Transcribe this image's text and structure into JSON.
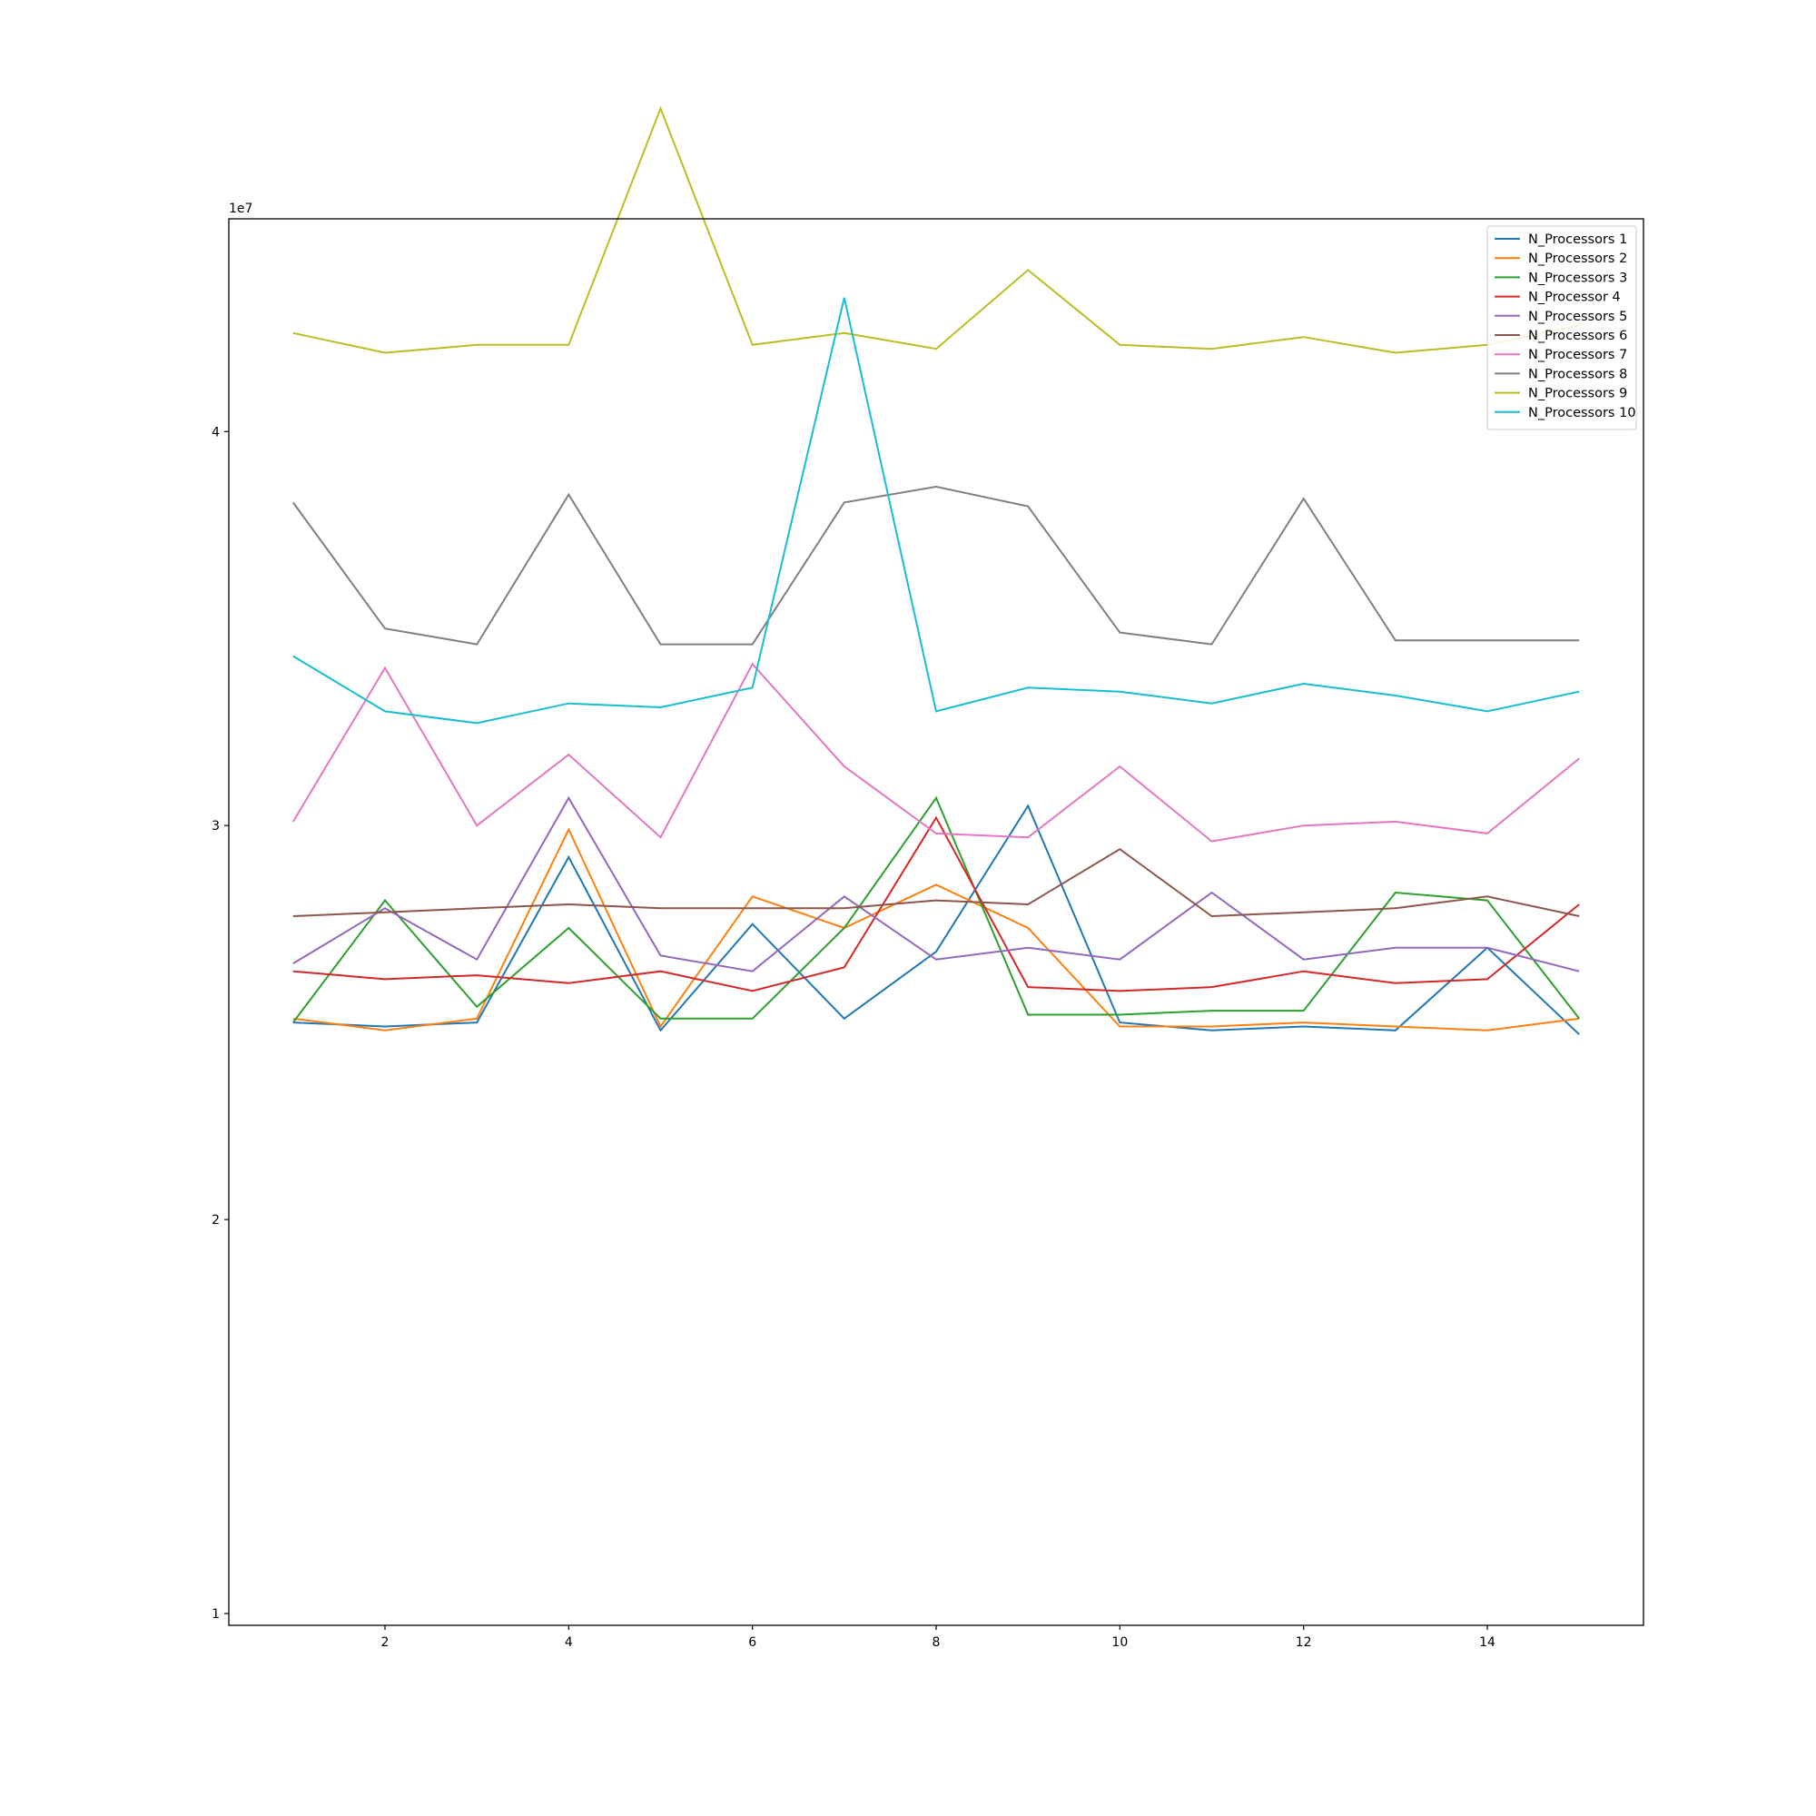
{
  "chart_data": {
    "type": "line",
    "title": "",
    "xlabel": "",
    "ylabel": "",
    "y_offset_label": "1e7",
    "xlim": [
      0.3,
      15.7
    ],
    "ylim": [
      0.97,
      4.54
    ],
    "x_ticks": [
      2,
      4,
      6,
      8,
      10,
      12,
      14
    ],
    "y_ticks": [
      1,
      2,
      3,
      4
    ],
    "grid": false,
    "legend_position": "top-right",
    "x": [
      1,
      2,
      3,
      4,
      5,
      6,
      7,
      8,
      9,
      10,
      11,
      12,
      13,
      14,
      15
    ],
    "series": [
      {
        "name": "N_Processors 1",
        "color": "#1f77b4",
        "values": [
          2.5,
          2.49,
          2.5,
          2.92,
          2.48,
          2.75,
          2.51,
          2.68,
          3.05,
          2.5,
          2.48,
          2.49,
          2.48,
          2.69,
          2.47
        ]
      },
      {
        "name": "N_Processors 2",
        "color": "#ff7f0e",
        "values": [
          2.51,
          2.48,
          2.51,
          2.99,
          2.49,
          2.82,
          2.74,
          2.85,
          2.74,
          2.49,
          2.49,
          2.5,
          2.49,
          2.48,
          2.51
        ]
      },
      {
        "name": "N_Processors 3",
        "color": "#2ca02c",
        "values": [
          2.5,
          2.81,
          2.54,
          2.74,
          2.51,
          2.51,
          2.74,
          3.07,
          2.52,
          2.52,
          2.53,
          2.53,
          2.83,
          2.81,
          2.51
        ]
      },
      {
        "name": "N_Processor 4",
        "color": "#d62728",
        "values": [
          2.63,
          2.61,
          2.62,
          2.6,
          2.63,
          2.58,
          2.64,
          3.02,
          2.59,
          2.58,
          2.59,
          2.63,
          2.6,
          2.61,
          2.8
        ]
      },
      {
        "name": "N_Processors 5",
        "color": "#9467bd",
        "values": [
          2.65,
          2.79,
          2.66,
          3.07,
          2.67,
          2.63,
          2.82,
          2.66,
          2.69,
          2.66,
          2.83,
          2.66,
          2.69,
          2.69,
          2.63
        ]
      },
      {
        "name": "N_Processors 6",
        "color": "#8c564b",
        "values": [
          2.77,
          2.78,
          2.79,
          2.8,
          2.79,
          2.79,
          2.79,
          2.81,
          2.8,
          2.94,
          2.77,
          2.78,
          2.79,
          2.82,
          2.77
        ]
      },
      {
        "name": "N_Processors 7",
        "color": "#e377c2",
        "values": [
          3.01,
          3.4,
          3.0,
          3.18,
          2.97,
          3.41,
          3.15,
          2.98,
          2.97,
          3.15,
          2.96,
          3.0,
          3.01,
          2.98,
          3.17
        ]
      },
      {
        "name": "N_Processors 8",
        "color": "#7f7f7f",
        "values": [
          3.82,
          3.5,
          3.46,
          3.84,
          3.46,
          3.46,
          3.82,
          3.86,
          3.81,
          3.49,
          3.46,
          3.83,
          3.47,
          3.47,
          3.47
        ]
      },
      {
        "name": "N_Processors 9",
        "color": "#bcbd22",
        "values": [
          4.25,
          4.2,
          4.22,
          4.22,
          4.82,
          4.22,
          4.25,
          4.21,
          4.41,
          4.22,
          4.21,
          4.24,
          4.2,
          4.22,
          4.27
        ]
      },
      {
        "name": "N_Processors 10",
        "color": "#17becf",
        "values": [
          3.43,
          3.29,
          3.26,
          3.31,
          3.3,
          3.35,
          4.34,
          3.29,
          3.35,
          3.34,
          3.31,
          3.36,
          3.33,
          3.29,
          3.34
        ]
      }
    ]
  }
}
